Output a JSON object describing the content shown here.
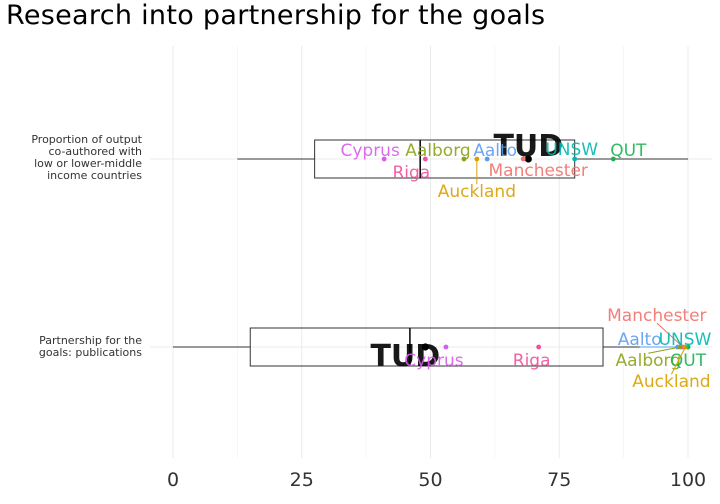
{
  "chart_data": {
    "type": "boxplot",
    "title": "Research into partnership for the goals",
    "xlabel": "",
    "ylabel": "",
    "xlim": [
      0,
      100
    ],
    "x_ticks": [
      "0",
      "25",
      "50",
      "75",
      "100"
    ],
    "grid": true,
    "categories": [
      {
        "name": "Proportion of output co-authored with low or lower-middle income countries",
        "label_lines": [
          "Proportion of output",
          "co-authored with",
          "low or lower-middle",
          "income countries"
        ],
        "box": {
          "min": 12.5,
          "q1": 27.5,
          "median": 48,
          "q3": 78,
          "max": 100
        },
        "points": [
          {
            "name": "TUD",
            "value": 69,
            "color": "#000000",
            "highlight": true
          },
          {
            "name": "Cyprus",
            "value": 41,
            "color": "#D65CEB"
          },
          {
            "name": "Riga",
            "value": 49,
            "color": "#F0509C"
          },
          {
            "name": "Aalborg",
            "value": 56.5,
            "color": "#8AA317"
          },
          {
            "name": "Auckland",
            "value": 59,
            "color": "#D8A000"
          },
          {
            "name": "Aalto",
            "value": 61,
            "color": "#5A9CF0"
          },
          {
            "name": "Manchester",
            "value": 68,
            "color": "#F0716B"
          },
          {
            "name": "UNSW",
            "value": 78,
            "color": "#00B8B0"
          },
          {
            "name": "QUT",
            "value": 85.5,
            "color": "#19B452"
          }
        ]
      },
      {
        "name": "Partnership for the goals: publications",
        "label_lines": [
          "Partnership for the",
          "goals: publications"
        ],
        "box": {
          "min": 0,
          "q1": 15,
          "median": 46,
          "q3": 83.5,
          "max": 100
        },
        "points": [
          {
            "name": "TUD",
            "value": 49,
            "color": "#000000",
            "highlight": true
          },
          {
            "name": "Cyprus",
            "value": 53,
            "color": "#D65CEB"
          },
          {
            "name": "Riga",
            "value": 71,
            "color": "#F0509C"
          },
          {
            "name": "Manchester",
            "value": 99,
            "color": "#F0716B"
          },
          {
            "name": "Aalto",
            "value": 98,
            "color": "#5A9CF0"
          },
          {
            "name": "UNSW",
            "value": 100,
            "color": "#00B8B0"
          },
          {
            "name": "Aalborg",
            "value": 98.5,
            "color": "#8AA317"
          },
          {
            "name": "QUT",
            "value": 100,
            "color": "#19B452"
          },
          {
            "name": "Auckland",
            "value": 99.5,
            "color": "#D8A000"
          }
        ]
      }
    ]
  }
}
